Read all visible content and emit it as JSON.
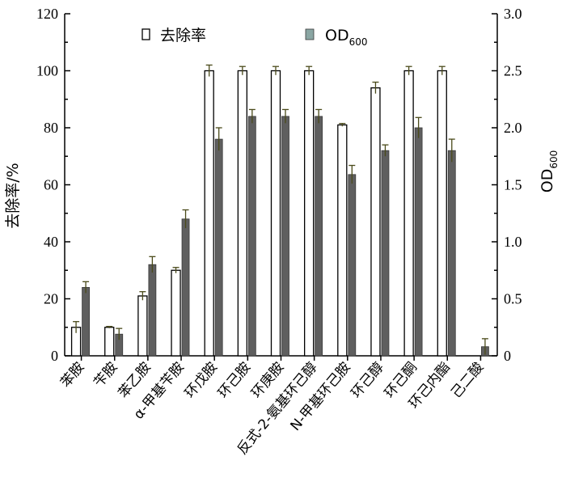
{
  "chart_data": {
    "type": "bar",
    "categories": [
      "苯胺",
      "苄胺",
      "苯乙胺",
      "α-甲基苄胺",
      "环戊胺",
      "环己胺",
      "环庚胺",
      "反式-2-氨基环己醇",
      "N-甲基环己胺",
      "环己醇",
      "环己酮",
      "环己内酯",
      "己二酸"
    ],
    "series": [
      {
        "name": "去除率",
        "axis": "left",
        "values": [
          10,
          10,
          21,
          30,
          100,
          100,
          100,
          100,
          81,
          94,
          100,
          100,
          0
        ],
        "errors": [
          2,
          0.3,
          1.5,
          1,
          2,
          1.5,
          1.5,
          1.5,
          0.5,
          2,
          1.5,
          1.5,
          0
        ],
        "color": "#ffffff"
      },
      {
        "name": "OD600",
        "axis": "right",
        "values": [
          0.6,
          0.19,
          0.8,
          1.2,
          1.9,
          2.1,
          2.1,
          2.1,
          1.59,
          1.8,
          2.0,
          1.8,
          0.08
        ],
        "errors": [
          0.05,
          0.05,
          0.07,
          0.08,
          0.1,
          0.06,
          0.06,
          0.06,
          0.08,
          0.05,
          0.09,
          0.1,
          0.07
        ],
        "color": "#5f5f5f"
      }
    ],
    "y_left": {
      "label": "去除率/%",
      "ylim": [
        0,
        120
      ],
      "ticks": [
        "0",
        "20",
        "40",
        "60",
        "80",
        "100",
        "120"
      ]
    },
    "y_right": {
      "label": "OD",
      "label_subscript": "600",
      "ylim": [
        0,
        3.0
      ],
      "ticks": [
        "0",
        "0.5",
        "1.0",
        "1.5",
        "2.0",
        "2.5",
        "3.0"
      ]
    },
    "legend": {
      "placement": "top-left",
      "items": [
        {
          "label": "去除率",
          "subscript": ""
        },
        {
          "label": "OD",
          "subscript": "600"
        }
      ]
    },
    "grid": false
  }
}
